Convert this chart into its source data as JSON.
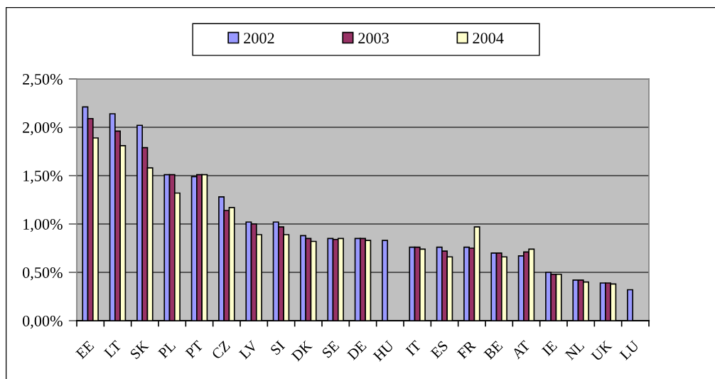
{
  "chart_data": {
    "type": "bar",
    "categories": [
      "EE",
      "LT",
      "SK",
      "PL",
      "PT",
      "CZ",
      "LV",
      "SI",
      "DK",
      "SE",
      "DE",
      "HU",
      "IT",
      "ES",
      "FR",
      "BE",
      "AT",
      "IE",
      "NL",
      "UK",
      "LU"
    ],
    "series": [
      {
        "name": "2002",
        "color": "#9999ff",
        "values": [
          2.21,
          2.14,
          2.02,
          1.51,
          1.49,
          1.28,
          1.02,
          1.02,
          0.88,
          0.85,
          0.85,
          0.83,
          0.76,
          0.76,
          0.76,
          0.7,
          0.67,
          0.5,
          0.42,
          0.39,
          0.32
        ]
      },
      {
        "name": "2003",
        "color": "#993366",
        "values": [
          2.09,
          1.96,
          1.79,
          1.51,
          1.51,
          1.14,
          1.0,
          0.97,
          0.85,
          0.84,
          0.85,
          null,
          0.76,
          0.72,
          0.75,
          0.7,
          0.71,
          0.48,
          0.42,
          0.39,
          null
        ]
      },
      {
        "name": "2004",
        "color": "#ffffcc",
        "values": [
          1.89,
          1.81,
          1.58,
          1.32,
          1.51,
          1.17,
          0.89,
          0.89,
          0.82,
          0.85,
          0.83,
          null,
          0.74,
          0.66,
          0.97,
          0.66,
          0.74,
          0.48,
          0.4,
          0.38,
          null
        ]
      }
    ],
    "ylim": [
      0,
      2.5
    ],
    "yticks": [
      {
        "value": 0,
        "label": "0,00%"
      },
      {
        "value": 0.5,
        "label": "0,50%"
      },
      {
        "value": 1.0,
        "label": "1,00%"
      },
      {
        "value": 1.5,
        "label": "1,50%"
      },
      {
        "value": 2.0,
        "label": "2,00%"
      },
      {
        "value": 2.5,
        "label": "2,50%"
      }
    ],
    "grid": "y",
    "legend": "top"
  }
}
